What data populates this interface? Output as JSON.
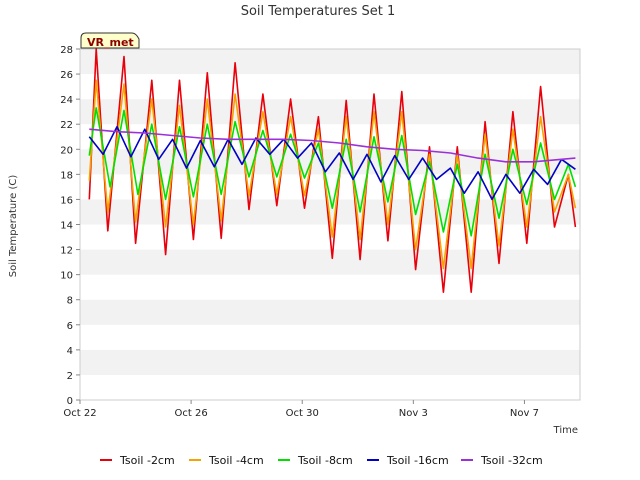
{
  "chart_data": {
    "type": "line",
    "title": "Soil Temperatures Set 1",
    "xlabel": "Time",
    "ylabel": "Soil Temperature (C)",
    "badge": "VR_met",
    "ylim": [
      0,
      28
    ],
    "yticks": [
      0,
      2,
      4,
      6,
      8,
      10,
      12,
      14,
      16,
      18,
      20,
      22,
      24,
      26,
      28
    ],
    "xlim": [
      "2023-10-22",
      "2023-11-09"
    ],
    "xticks": [
      {
        "date": "2023-10-22",
        "label": "Oct 22"
      },
      {
        "date": "2023-10-26",
        "label": "Oct 26"
      },
      {
        "date": "2023-10-30",
        "label": "Oct 30"
      },
      {
        "date": "2023-11-03",
        "label": "Nov 3"
      },
      {
        "date": "2023-11-07",
        "label": "Nov 7"
      }
    ],
    "grid": "horizontal bands",
    "legend_position": "bottom",
    "series": [
      {
        "name": "Tsoil -2cm",
        "color": "#e8000b",
        "x": [
          "2023-10-22T08:00",
          "2023-10-22T14:00",
          "2023-10-23T00:00",
          "2023-10-23T14:00",
          "2023-10-24T00:00",
          "2023-10-24T14:00",
          "2023-10-25T02:00",
          "2023-10-25T14:00",
          "2023-10-26T02:00",
          "2023-10-26T14:00",
          "2023-10-27T02:00",
          "2023-10-27T14:00",
          "2023-10-28T02:00",
          "2023-10-28T14:00",
          "2023-10-29T02:00",
          "2023-10-29T14:00",
          "2023-10-30T02:00",
          "2023-10-30T14:00",
          "2023-10-31T02:00",
          "2023-10-31T14:00",
          "2023-11-01T02:00",
          "2023-11-01T14:00",
          "2023-11-02T02:00",
          "2023-11-02T14:00",
          "2023-11-03T02:00",
          "2023-11-03T14:00",
          "2023-11-04T02:00",
          "2023-11-04T14:00",
          "2023-11-05T02:00",
          "2023-11-05T14:00",
          "2023-11-06T02:00",
          "2023-11-06T14:00",
          "2023-11-07T02:00",
          "2023-11-07T14:00",
          "2023-11-08T02:00",
          "2023-11-08T14:00",
          "2023-11-08T20:00"
        ],
        "y": [
          16.0,
          28.0,
          13.5,
          27.4,
          12.5,
          25.5,
          11.6,
          25.5,
          12.8,
          26.1,
          12.9,
          26.9,
          15.2,
          24.4,
          15.5,
          24.0,
          15.3,
          22.6,
          11.3,
          23.9,
          11.2,
          24.4,
          12.7,
          24.6,
          10.4,
          20.2,
          8.6,
          20.2,
          8.6,
          22.2,
          10.9,
          23.0,
          12.5,
          25.0,
          13.8,
          18.0,
          13.8
        ]
      },
      {
        "name": "Tsoil -4cm",
        "color": "#f5a300",
        "x": [
          "2023-10-22T08:00",
          "2023-10-22T14:00",
          "2023-10-23T00:00",
          "2023-10-23T14:00",
          "2023-10-24T00:00",
          "2023-10-24T14:00",
          "2023-10-25T02:00",
          "2023-10-25T14:00",
          "2023-10-26T02:00",
          "2023-10-26T14:00",
          "2023-10-27T02:00",
          "2023-10-27T14:00",
          "2023-10-28T02:00",
          "2023-10-28T14:00",
          "2023-10-29T02:00",
          "2023-10-29T14:00",
          "2023-10-30T02:00",
          "2023-10-30T14:00",
          "2023-10-31T02:00",
          "2023-10-31T14:00",
          "2023-11-01T02:00",
          "2023-11-01T14:00",
          "2023-11-02T02:00",
          "2023-11-02T14:00",
          "2023-11-03T02:00",
          "2023-11-03T14:00",
          "2023-11-04T02:00",
          "2023-11-04T14:00",
          "2023-11-05T02:00",
          "2023-11-05T14:00",
          "2023-11-06T02:00",
          "2023-11-06T14:00",
          "2023-11-07T02:00",
          "2023-11-07T14:00",
          "2023-11-08T02:00",
          "2023-11-08T14:00",
          "2023-11-08T20:00"
        ],
        "y": [
          17.5,
          25.5,
          15.0,
          25.2,
          14.2,
          24.0,
          13.8,
          23.5,
          14.0,
          24.0,
          14.3,
          24.4,
          16.3,
          23.0,
          16.4,
          22.6,
          16.3,
          21.6,
          13.0,
          22.6,
          12.8,
          23.0,
          14.0,
          23.0,
          12.0,
          19.6,
          10.5,
          19.6,
          10.5,
          21.2,
          12.3,
          21.6,
          13.8,
          22.6,
          15.0,
          18.0,
          15.3
        ]
      },
      {
        "name": "Tsoil -8cm",
        "color": "#00e000",
        "x": [
          "2023-10-22T08:00",
          "2023-10-22T14:00",
          "2023-10-23T02:00",
          "2023-10-23T14:00",
          "2023-10-24T02:00",
          "2023-10-24T14:00",
          "2023-10-25T02:00",
          "2023-10-25T14:00",
          "2023-10-26T02:00",
          "2023-10-26T14:00",
          "2023-10-27T02:00",
          "2023-10-27T14:00",
          "2023-10-28T02:00",
          "2023-10-28T14:00",
          "2023-10-29T02:00",
          "2023-10-29T14:00",
          "2023-10-30T02:00",
          "2023-10-30T14:00",
          "2023-10-31T02:00",
          "2023-10-31T14:00",
          "2023-11-01T02:00",
          "2023-11-01T14:00",
          "2023-11-02T02:00",
          "2023-11-02T14:00",
          "2023-11-03T02:00",
          "2023-11-03T14:00",
          "2023-11-04T02:00",
          "2023-11-04T14:00",
          "2023-11-05T02:00",
          "2023-11-05T14:00",
          "2023-11-06T02:00",
          "2023-11-06T14:00",
          "2023-11-07T02:00",
          "2023-11-07T14:00",
          "2023-11-08T02:00",
          "2023-11-08T14:00",
          "2023-11-08T20:00"
        ],
        "y": [
          19.5,
          23.3,
          17.0,
          23.1,
          16.4,
          22.0,
          16.0,
          21.8,
          16.2,
          22.0,
          16.4,
          22.2,
          17.8,
          21.5,
          17.8,
          21.2,
          17.7,
          20.5,
          15.3,
          20.8,
          15.0,
          21.0,
          15.8,
          21.1,
          14.8,
          19.0,
          13.4,
          18.8,
          13.1,
          19.6,
          14.5,
          20.0,
          15.6,
          20.5,
          16.0,
          18.8,
          17.0
        ]
      },
      {
        "name": "Tsoil -16cm",
        "color": "#0000c8",
        "x": [
          "2023-10-22T08:00",
          "2023-10-22T20:00",
          "2023-10-23T08:00",
          "2023-10-23T20:00",
          "2023-10-24T08:00",
          "2023-10-24T20:00",
          "2023-10-25T08:00",
          "2023-10-25T20:00",
          "2023-10-26T08:00",
          "2023-10-26T20:00",
          "2023-10-27T08:00",
          "2023-10-27T20:00",
          "2023-10-28T08:00",
          "2023-10-28T20:00",
          "2023-10-29T08:00",
          "2023-10-29T20:00",
          "2023-10-30T08:00",
          "2023-10-30T20:00",
          "2023-10-31T08:00",
          "2023-10-31T20:00",
          "2023-11-01T08:00",
          "2023-11-01T20:00",
          "2023-11-02T08:00",
          "2023-11-02T20:00",
          "2023-11-03T08:00",
          "2023-11-03T20:00",
          "2023-11-04T08:00",
          "2023-11-04T20:00",
          "2023-11-05T08:00",
          "2023-11-05T20:00",
          "2023-11-06T08:00",
          "2023-11-06T20:00",
          "2023-11-07T08:00",
          "2023-11-07T20:00",
          "2023-11-08T08:00",
          "2023-11-08T20:00"
        ],
        "y": [
          21.0,
          19.6,
          21.8,
          19.4,
          21.6,
          19.2,
          20.8,
          18.5,
          20.7,
          18.6,
          20.8,
          18.8,
          20.9,
          19.6,
          20.8,
          19.3,
          20.5,
          18.2,
          19.7,
          17.6,
          19.6,
          17.4,
          19.5,
          17.6,
          19.3,
          17.6,
          18.5,
          16.5,
          18.2,
          16.0,
          18.0,
          16.5,
          18.4,
          17.2,
          19.2,
          18.4
        ]
      },
      {
        "name": "Tsoil -32cm",
        "color": "#9b30d9",
        "x": [
          "2023-10-22T08:00",
          "2023-10-23T08:00",
          "2023-10-24T08:00",
          "2023-10-25T08:00",
          "2023-10-26T08:00",
          "2023-10-27T08:00",
          "2023-10-28T08:00",
          "2023-10-29T08:00",
          "2023-10-30T08:00",
          "2023-10-31T08:00",
          "2023-11-01T08:00",
          "2023-11-02T08:00",
          "2023-11-03T08:00",
          "2023-11-04T08:00",
          "2023-11-05T08:00",
          "2023-11-06T08:00",
          "2023-11-07T08:00",
          "2023-11-08T08:00",
          "2023-11-08T20:00"
        ],
        "y": [
          21.6,
          21.4,
          21.3,
          21.1,
          20.9,
          20.8,
          20.8,
          20.8,
          20.7,
          20.5,
          20.2,
          20.0,
          19.9,
          19.7,
          19.3,
          19.0,
          19.0,
          19.2,
          19.3
        ]
      }
    ]
  }
}
